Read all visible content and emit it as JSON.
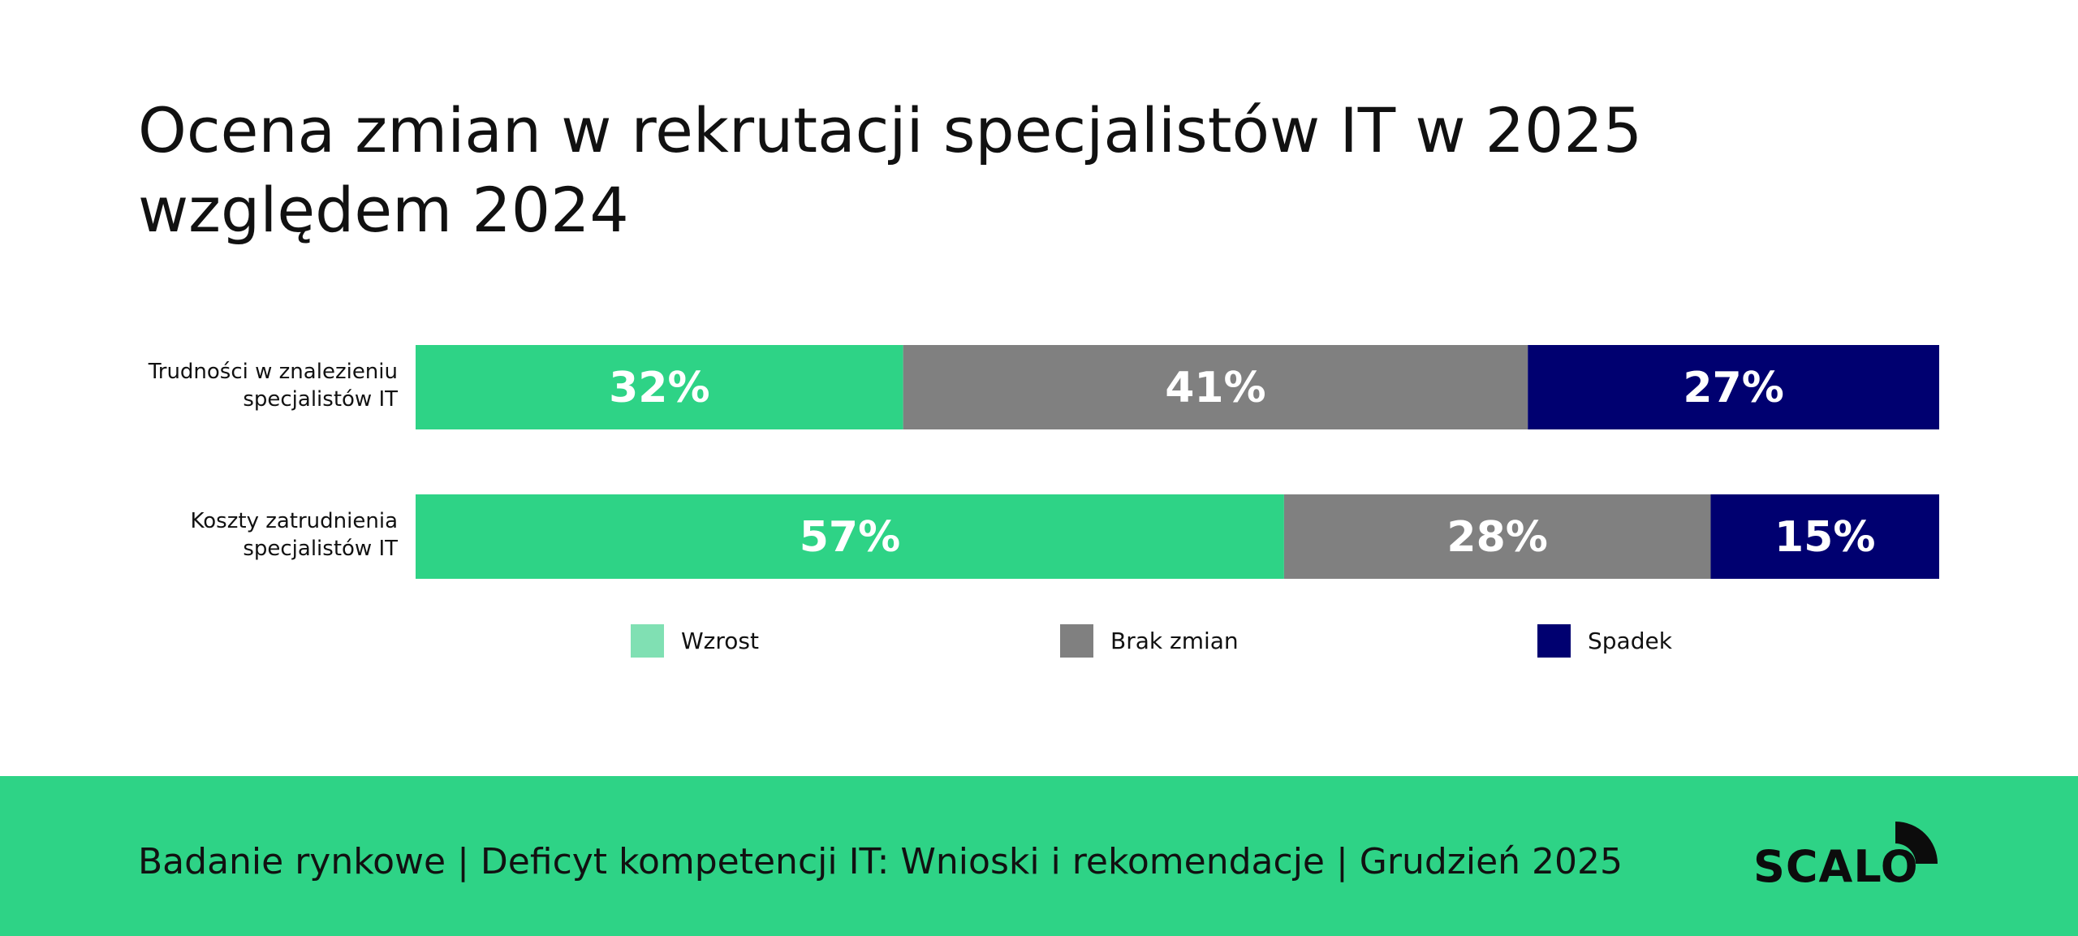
{
  "title": "Ocena zmian w rekrutacji specjalistów IT w 2025 względem 2024",
  "chart_data": {
    "type": "bar",
    "orientation": "horizontal",
    "stacked": true,
    "unit": "%",
    "categories": [
      [
        "Trudności w znalezieniu",
        "specjalistów IT"
      ],
      [
        "Koszty zatrudnienia",
        "specjalistów IT"
      ]
    ],
    "series": [
      {
        "name": "Wzrost",
        "values": [
          32,
          57
        ],
        "color": "#2ed386",
        "legend_color": "#80e0b3"
      },
      {
        "name": "Brak zmian",
        "values": [
          41,
          28
        ],
        "color": "#808080",
        "legend_color": "#808080"
      },
      {
        "name": "Spadek",
        "values": [
          27,
          15
        ],
        "color": "#000070",
        "legend_color": "#000070"
      }
    ],
    "xlim": [
      0,
      100
    ],
    "grid": false,
    "legend_position": "bottom"
  },
  "footer": {
    "text": "Badanie rynkowe | Deficyt kompetencji IT: Wnioski i rekomendacje | Grudzień 2025",
    "background": "#2ed386"
  },
  "logo": {
    "text": "SCALO"
  }
}
